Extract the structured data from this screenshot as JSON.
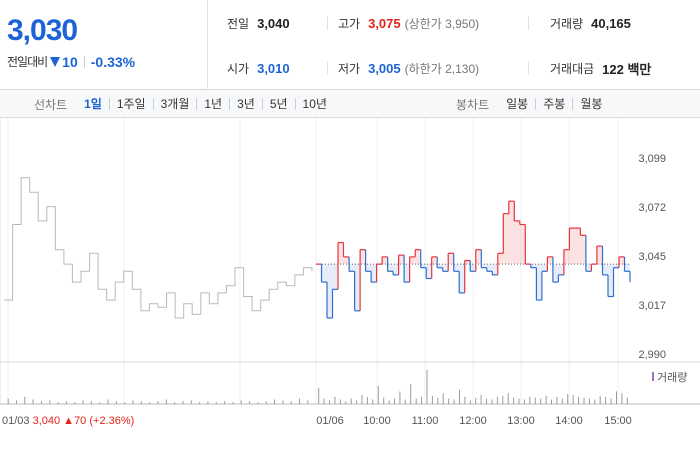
{
  "quote": {
    "price": "3,030",
    "change_label": "전일대비",
    "change_value": "10",
    "change_percent": "-0.33%"
  },
  "stats": {
    "prev_close_label": "전일",
    "prev_close": "3,040",
    "open_label": "시가",
    "open": "3,010",
    "high_label": "고가",
    "high": "3,075",
    "upper_limit": "(상한가 3,950)",
    "low_label": "저가",
    "low": "3,005",
    "lower_limit": "(하한가 2,130)",
    "volume_label": "거래량",
    "volume": "40,165",
    "turnover_label": "거래대금",
    "turnover": "122 백만"
  },
  "toolbar": {
    "line_label": "선차트",
    "periods": [
      "1일",
      "1주일",
      "3개월",
      "1년",
      "3년",
      "5년",
      "10년"
    ],
    "active_period": "1일",
    "candle_label": "봉차트",
    "candle_periods": [
      "일봉",
      "주봉",
      "월봉"
    ]
  },
  "chart_data": {
    "type": "line",
    "y_ticks": [
      "3,099",
      "3,072",
      "3,045",
      "3,017",
      "2,990"
    ],
    "ylim": [
      2990,
      3099
    ],
    "reference_price": 3040,
    "x_ticks": [
      "01/06",
      "10:00",
      "11:00",
      "12:00",
      "13:00",
      "14:00",
      "15:00"
    ],
    "legend": "거래량",
    "prev_day": {
      "date": "01/03",
      "close": "3,040",
      "change": "70",
      "change_pct": "(+2.36%)",
      "series": [
        3020,
        3062,
        3088,
        3080,
        3064,
        3072,
        3048,
        3040,
        3030,
        3036,
        3046,
        3026,
        3020,
        3030,
        3036,
        3026,
        3014,
        3018,
        3016,
        3024,
        3010,
        3018,
        3012,
        3024,
        3018,
        3024,
        3028,
        3038,
        3022,
        3014,
        3020,
        3026,
        3030,
        3028,
        3034,
        3038,
        3036
      ],
      "volume": [
        6,
        4,
        8,
        5,
        3,
        4,
        2,
        3,
        2,
        4,
        3,
        2,
        5,
        3,
        2,
        4,
        3,
        2,
        3,
        5,
        2,
        3,
        4,
        2,
        3,
        2,
        3,
        2,
        4,
        3,
        2,
        3,
        5,
        4,
        3,
        6,
        4
      ]
    },
    "today": {
      "series": [
        3040,
        3030,
        3010,
        3026,
        3052,
        3044,
        3036,
        3014,
        3048,
        3036,
        3030,
        3040,
        3044,
        3036,
        3034,
        3045,
        3030,
        3044,
        3048,
        3038,
        3032,
        3044,
        3038,
        3036,
        3046,
        3036,
        3024,
        3042,
        3036,
        3048,
        3038,
        3036,
        3034,
        3046,
        3068,
        3075,
        3064,
        3062,
        3040,
        3038,
        3020,
        3036,
        3044,
        3030,
        3034,
        3048,
        3060,
        3060,
        3056,
        3036,
        3040,
        3050,
        3034,
        3022,
        3038,
        3044,
        3036,
        3030
      ],
      "volume": [
        18,
        6,
        4,
        8,
        5,
        3,
        6,
        4,
        10,
        8,
        5,
        20,
        7,
        4,
        6,
        14,
        5,
        22,
        6,
        8,
        38,
        9,
        7,
        12,
        6,
        5,
        16,
        8,
        4,
        7,
        10,
        6,
        5,
        8,
        9,
        12,
        7,
        6,
        5,
        8,
        7,
        6,
        9,
        5,
        8,
        6,
        11,
        10,
        8,
        7,
        6,
        5,
        9,
        8,
        6,
        14,
        12,
        7
      ]
    }
  }
}
